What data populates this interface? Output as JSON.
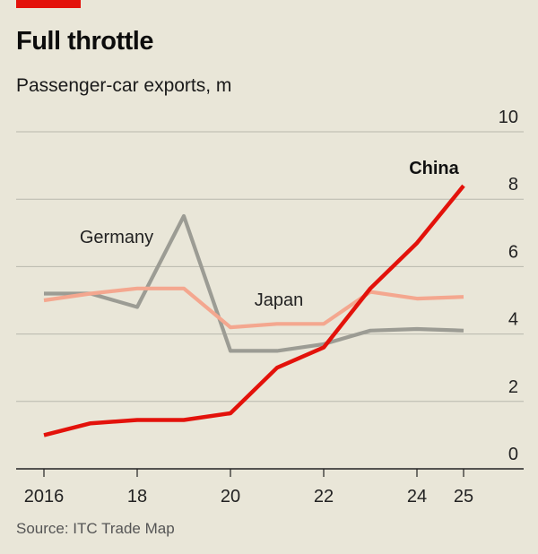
{
  "header": {
    "title": "Full throttle",
    "subtitle": "Passenger-car exports, m"
  },
  "footer": {
    "source": "Source: ITC Trade Map"
  },
  "colors": {
    "background": "#e9e6d8",
    "accent": "#e3120b",
    "china": "#e3120b",
    "germany": "#9c9c94",
    "japan": "#f4a78f",
    "grid": "#b9b8ad",
    "axis": "#222222"
  },
  "chart_data": {
    "type": "line",
    "title": "Full throttle",
    "subtitle": "Passenger-car exports, m",
    "xlabel": "",
    "ylabel": "",
    "x": [
      2016,
      2017,
      2018,
      2019,
      2020,
      2021,
      2022,
      2023,
      2024,
      2025
    ],
    "x_tick_values": [
      2016,
      2018,
      2020,
      2022,
      2024,
      2025
    ],
    "x_tick_labels": [
      "2016",
      "18",
      "20",
      "22",
      "24",
      "25"
    ],
    "ylim": [
      0,
      10
    ],
    "y_ticks": [
      0,
      2,
      4,
      6,
      8,
      10
    ],
    "y_tick_labels": [
      "0",
      "2",
      "4",
      "6",
      "8",
      "10"
    ],
    "y_axis_position": "right",
    "grid": true,
    "legend": "inline labels",
    "series": [
      {
        "name": "Germany",
        "color": "#9c9c94",
        "values": [
          5.2,
          5.2,
          4.8,
          7.5,
          3.5,
          3.5,
          3.7,
          4.1,
          4.15,
          4.1
        ]
      },
      {
        "name": "Japan",
        "color": "#f4a78f",
        "values": [
          5.0,
          5.2,
          5.35,
          5.35,
          4.2,
          4.3,
          4.3,
          5.25,
          5.05,
          5.1
        ]
      },
      {
        "name": "China",
        "color": "#e3120b",
        "values": [
          1.0,
          1.35,
          1.45,
          1.45,
          1.65,
          3.0,
          3.6,
          5.35,
          6.7,
          8.4
        ]
      }
    ]
  }
}
